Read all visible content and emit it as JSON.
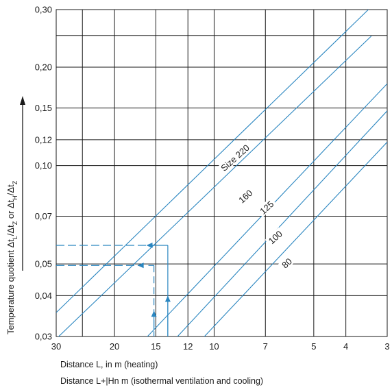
{
  "chart_data": {
    "type": "line",
    "title": "",
    "x_scale": "log-reversed",
    "y_scale": "log",
    "xlim": [
      30,
      3
    ],
    "ylim": [
      0.03,
      0.3
    ],
    "x_ticks": [
      {
        "value": 30,
        "label": "30"
      },
      {
        "value": 20,
        "label": "20"
      },
      {
        "value": 15,
        "label": "15"
      },
      {
        "value": 12,
        "label": "12"
      },
      {
        "value": 10,
        "label": "10"
      },
      {
        "value": 7,
        "label": "7"
      },
      {
        "value": 5,
        "label": "5"
      },
      {
        "value": 4,
        "label": "4"
      },
      {
        "value": 3,
        "label": "3"
      }
    ],
    "y_ticks": [
      {
        "value": 0.3,
        "label": "0,30"
      },
      {
        "value": 0.2,
        "label": "0,20"
      },
      {
        "value": 0.15,
        "label": "0,15"
      },
      {
        "value": 0.12,
        "label": "0,12"
      },
      {
        "value": 0.1,
        "label": "0,10"
      },
      {
        "value": 0.07,
        "label": "0,07"
      },
      {
        "value": 0.05,
        "label": "0,05"
      },
      {
        "value": 0.04,
        "label": "0,04"
      },
      {
        "value": 0.03,
        "label": "0,03"
      }
    ],
    "extra_gridlines_y": [
      0.25
    ],
    "extra_gridlines_x": [
      25
    ],
    "ylabel_parts": [
      "Temperature quotient Δt",
      "L",
      "/Δt",
      "Z",
      " or Δt",
      "H",
      "/Δt",
      "Z"
    ],
    "xlabel_heating": "Distance L, in m (heating)",
    "xlabel_isothermal": "Distance L+|Hn m (isothermal ventilation and cooling)",
    "grid": true,
    "legend": "none",
    "line_color": "#2a86c0",
    "series": [
      {
        "name": "Size 220",
        "label": "Size 220",
        "points": [
          [
            30,
            0.0355
          ],
          [
            3.42,
            0.3
          ]
        ]
      },
      {
        "name": "160",
        "label": "160",
        "points": [
          [
            30,
            0.0295
          ],
          [
            3.35,
            0.249
          ]
        ]
      },
      {
        "name": "125",
        "label": "125",
        "points": [
          [
            15.9,
            0.03
          ],
          [
            3,
            0.178
          ]
        ]
      },
      {
        "name": "100",
        "label": "100",
        "points": [
          [
            12.9,
            0.03
          ],
          [
            3,
            0.147
          ]
        ]
      },
      {
        "name": "80",
        "label": "80",
        "points": [
          [
            10.7,
            0.03
          ],
          [
            3,
            0.118
          ]
        ]
      }
    ],
    "series_label_positions": [
      {
        "series": "Size 220",
        "x": 8.6,
        "y": 0.105
      },
      {
        "series": "160",
        "x": 8.0,
        "y": 0.08
      },
      {
        "series": "125",
        "x": 6.9,
        "y": 0.074
      },
      {
        "series": "100",
        "x": 6.5,
        "y": 0.06
      },
      {
        "series": "80",
        "x": 6.0,
        "y": 0.05
      }
    ],
    "annotations": [
      {
        "type": "dashed-arrow",
        "from": [
          30,
          0.057
        ],
        "to": [
          15.8,
          0.057
        ]
      },
      {
        "type": "dashed-arrow",
        "from": [
          30,
          0.0495
        ],
        "to": [
          16.8,
          0.0495
        ]
      },
      {
        "type": "solid-line",
        "from": [
          15.8,
          0.057
        ],
        "to": [
          13.8,
          0.057
        ]
      },
      {
        "type": "solid-line",
        "from": [
          15.8,
          0.0495
        ],
        "to": [
          15.2,
          0.0495
        ]
      },
      {
        "type": "solid-line",
        "from": [
          13.8,
          0.057
        ],
        "to": [
          13.8,
          0.03
        ]
      },
      {
        "type": "arrow-up",
        "x": 13.8,
        "from": 0.03,
        "to": 0.04
      },
      {
        "type": "dashed-line",
        "from": [
          15.2,
          0.0495
        ],
        "to": [
          15.2,
          0.03
        ]
      },
      {
        "type": "arrow-up",
        "x": 15.2,
        "from": 0.0315,
        "to": 0.036
      }
    ]
  }
}
